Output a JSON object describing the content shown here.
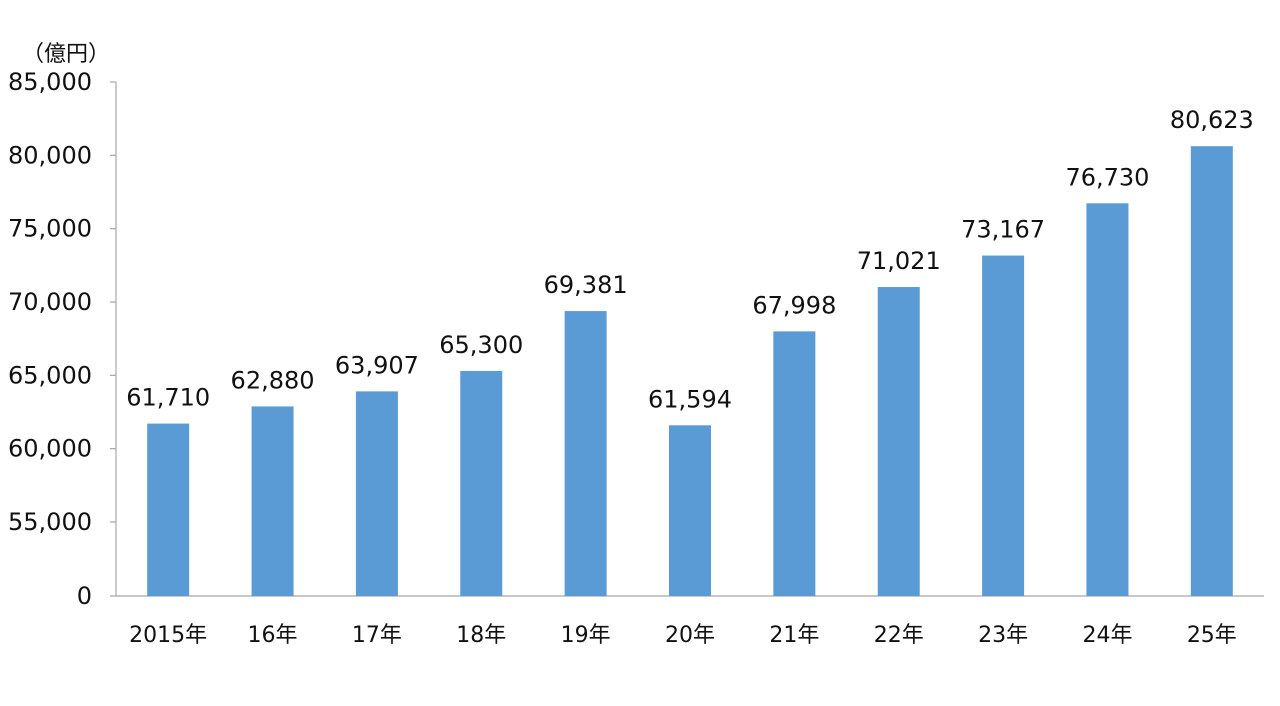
{
  "chart_data": {
    "type": "bar",
    "ylabel": "（億円）",
    "categories": [
      "2015年",
      "16年",
      "17年",
      "18年",
      "19年",
      "20年",
      "21年",
      "22年",
      "23年",
      "24年",
      "25年"
    ],
    "values": [
      61710,
      62880,
      63907,
      65300,
      69381,
      61594,
      67998,
      71021,
      73167,
      76730,
      80623
    ],
    "data_labels": [
      "61,710",
      "62,880",
      "63,907",
      "65,300",
      "69,381",
      "61,594",
      "67,998",
      "71,021",
      "73,167",
      "76,730",
      "80,623"
    ],
    "y_ticks": [
      {
        "value": 0,
        "label": "0"
      },
      {
        "value": 55000,
        "label": "55,000"
      },
      {
        "value": 60000,
        "label": "60,000"
      },
      {
        "value": 65000,
        "label": "65,000"
      },
      {
        "value": 70000,
        "label": "70,000"
      },
      {
        "value": 75000,
        "label": "75,000"
      },
      {
        "value": 80000,
        "label": "80,000"
      },
      {
        "value": 85000,
        "label": "85,000"
      }
    ],
    "axis_break": {
      "below": 0,
      "above": 55000
    },
    "ylim": [
      0,
      85000
    ],
    "grid": false,
    "colors": {
      "bar": "#5B9BD5",
      "axis": "#A6A6A6",
      "text": "#111111"
    }
  }
}
